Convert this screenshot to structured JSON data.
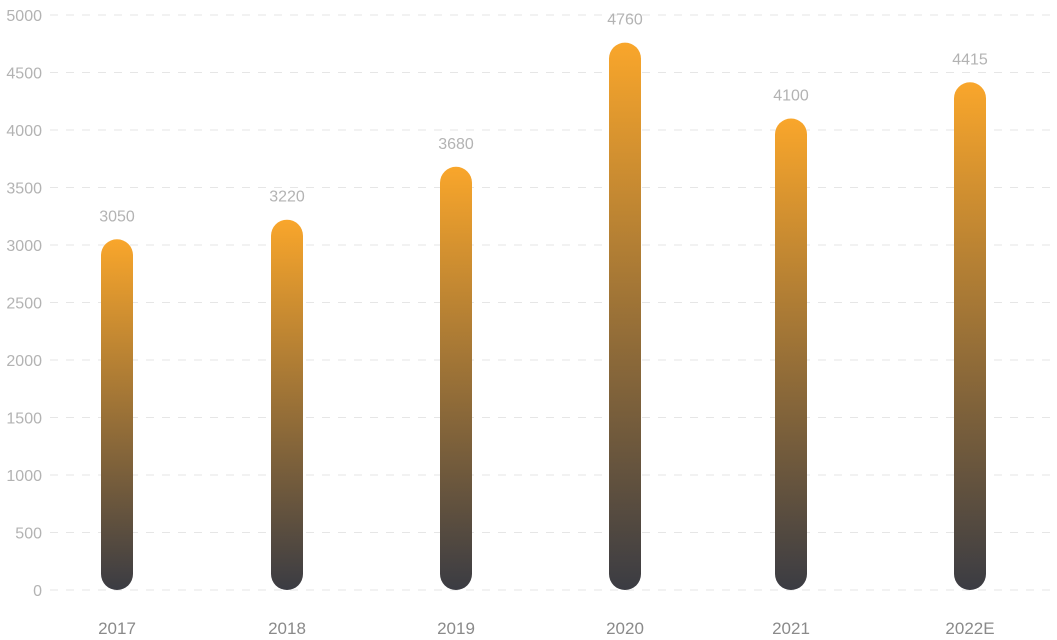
{
  "chart_data": {
    "type": "bar",
    "title": "",
    "xlabel": "",
    "ylabel": "",
    "categories": [
      "2017",
      "2018",
      "2019",
      "2020",
      "2021",
      "2022E"
    ],
    "values": [
      3050,
      3220,
      3680,
      4760,
      4100,
      4415
    ],
    "data_labels": [
      "3050",
      "3220",
      "3680",
      "4760",
      "4100",
      "4415"
    ],
    "ylim": [
      0,
      5000
    ],
    "yticks": [
      "0",
      "500",
      "1000",
      "1500",
      "2000",
      "2500",
      "3000",
      "3500",
      "4000",
      "4500",
      "5000"
    ],
    "grid": true,
    "legend": "none",
    "colors": {
      "bar_top": "#f9a62b",
      "bar_bottom": "#3b3c43",
      "grid": "#e6e6e6",
      "tick_text": "#b3b3b3",
      "category_text": "#8a8a8a"
    }
  }
}
